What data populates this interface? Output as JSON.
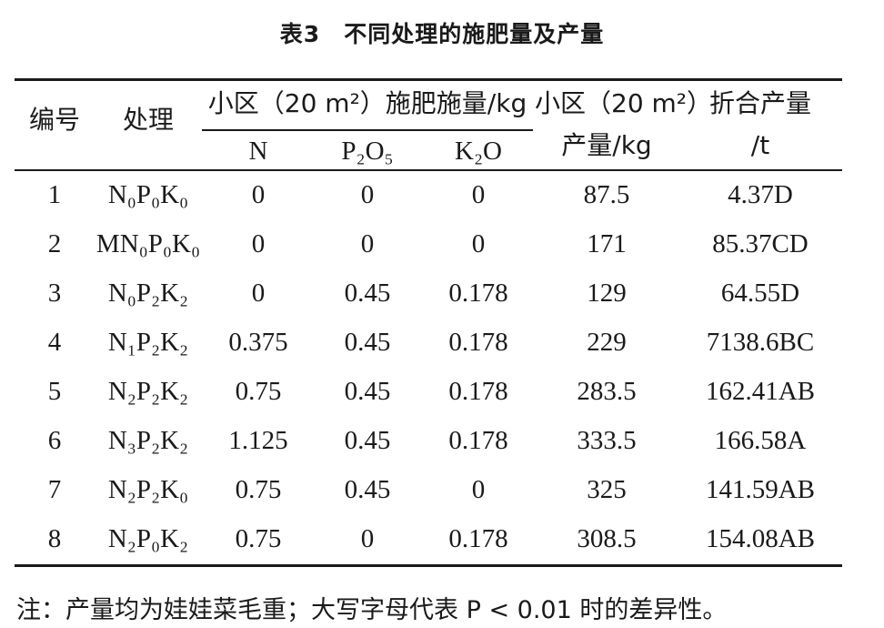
{
  "title": "表3　不同处理的施肥量及产量",
  "header": {
    "col_no": "编号",
    "col_treatment": "处理",
    "fert_group": "小区（20 m²）施肥施量/kg",
    "col_N": "N",
    "col_P2O5": "P₂O₅",
    "col_K2O": "K₂O",
    "col_plot_yield_line1": "小区（20 m²）",
    "col_plot_yield_line2": "产量/kg",
    "col_yield_line1": "折合产量",
    "col_yield_line2": "/t"
  },
  "rows": [
    {
      "no": "1",
      "treatment": "N₀P₀K₀",
      "n": "0",
      "p": "0",
      "k": "0",
      "plot_yield": "87.5",
      "yield": "4.37D"
    },
    {
      "no": "2",
      "treatment": "MN₀P₀K₀",
      "n": "0",
      "p": "0",
      "k": "0",
      "plot_yield": "171",
      "yield": "85.37CD"
    },
    {
      "no": "3",
      "treatment": "N₀P₂K₂",
      "n": "0",
      "p": "0.45",
      "k": "0.178",
      "plot_yield": "129",
      "yield": "64.55D"
    },
    {
      "no": "4",
      "treatment": "N₁P₂K₂",
      "n": "0.375",
      "p": "0.45",
      "k": "0.178",
      "plot_yield": "229",
      "yield": "7138.6BC"
    },
    {
      "no": "5",
      "treatment": "N₂P₂K₂",
      "n": "0.75",
      "p": "0.45",
      "k": "0.178",
      "plot_yield": "283.5",
      "yield": "162.41AB"
    },
    {
      "no": "6",
      "treatment": "N₃P₂K₂",
      "n": "1.125",
      "p": "0.45",
      "k": "0.178",
      "plot_yield": "333.5",
      "yield": "166.58A"
    },
    {
      "no": "7",
      "treatment": "N₂P₂K₀",
      "n": "0.75",
      "p": "0.45",
      "k": "0",
      "plot_yield": "325",
      "yield": "141.59AB"
    },
    {
      "no": "8",
      "treatment": "N₂P₀K₂",
      "n": "0.75",
      "p": "0",
      "k": "0.178",
      "plot_yield": "308.5",
      "yield": "154.08AB"
    }
  ],
  "note": "注：产量均为娃娃菜毛重；大写字母代表 P < 0.01 时的差异性。"
}
